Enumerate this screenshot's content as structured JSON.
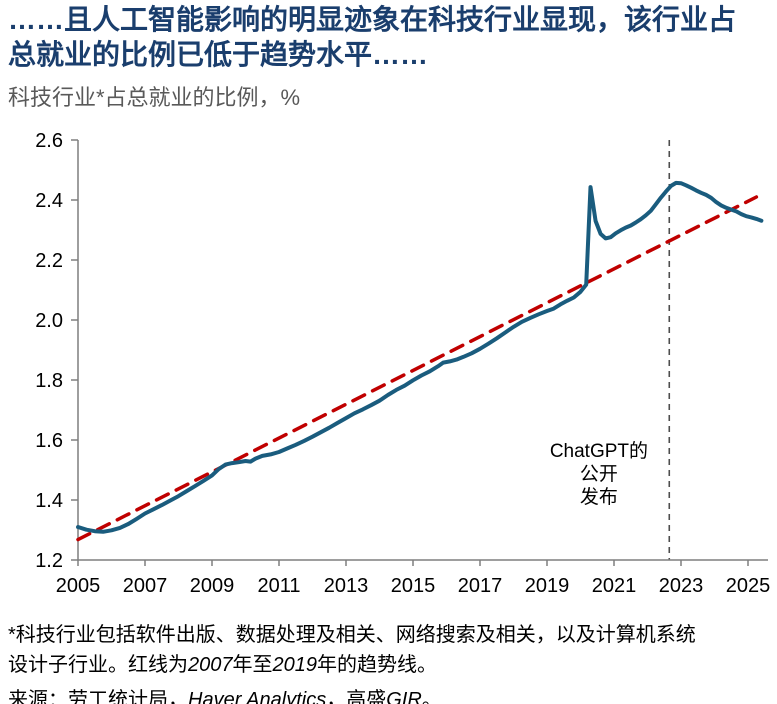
{
  "header": {
    "title_line1": "……且人工智能影响的明显迹象在科技行业显现，该行业占",
    "title_line2": "总就业的比例已低于趋势水平……",
    "subtitle": "科技行业*占总就业的比例，%"
  },
  "chart_data": {
    "type": "line",
    "title": "科技行业*占总就业的比例，%",
    "xlabel": "",
    "ylabel": "",
    "grid": false,
    "legend": "none",
    "xlim": [
      2005,
      2025.65
    ],
    "ylim": [
      1.2,
      2.6
    ],
    "x_ticks": [
      2005,
      2007,
      2009,
      2011,
      2013,
      2015,
      2017,
      2019,
      2021,
      2023,
      2025
    ],
    "y_ticks": [
      1.2,
      1.4,
      1.6,
      1.8,
      2.0,
      2.2,
      2.4,
      2.6
    ],
    "colors": {
      "series": "#1a5c7e",
      "trend": "#c00000",
      "vline": "#4d4d4d",
      "axis": "#7f7f7f",
      "tick_label": "#000000"
    },
    "series": [
      {
        "name": "科技行业占总就业的比例",
        "color": "#1a5c7e",
        "style": "solid",
        "points": [
          [
            2005.0,
            1.31
          ],
          [
            2005.25,
            1.301
          ],
          [
            2005.5,
            1.296
          ],
          [
            2005.75,
            1.294
          ],
          [
            2006.0,
            1.299
          ],
          [
            2006.25,
            1.307
          ],
          [
            2006.5,
            1.32
          ],
          [
            2006.75,
            1.337
          ],
          [
            2007.0,
            1.355
          ],
          [
            2007.25,
            1.369
          ],
          [
            2007.5,
            1.383
          ],
          [
            2007.75,
            1.398
          ],
          [
            2008.0,
            1.413
          ],
          [
            2008.25,
            1.43
          ],
          [
            2008.5,
            1.447
          ],
          [
            2008.75,
            1.464
          ],
          [
            2009.0,
            1.482
          ],
          [
            2009.2,
            1.503
          ],
          [
            2009.4,
            1.518
          ],
          [
            2009.6,
            1.523
          ],
          [
            2009.8,
            1.526
          ],
          [
            2010.0,
            1.53
          ],
          [
            2010.15,
            1.528
          ],
          [
            2010.3,
            1.538
          ],
          [
            2010.5,
            1.547
          ],
          [
            2010.75,
            1.552
          ],
          [
            2011.0,
            1.56
          ],
          [
            2011.25,
            1.572
          ],
          [
            2011.5,
            1.584
          ],
          [
            2011.75,
            1.597
          ],
          [
            2012.0,
            1.611
          ],
          [
            2012.25,
            1.626
          ],
          [
            2012.5,
            1.641
          ],
          [
            2012.75,
            1.657
          ],
          [
            2013.0,
            1.673
          ],
          [
            2013.25,
            1.689
          ],
          [
            2013.5,
            1.702
          ],
          [
            2013.75,
            1.716
          ],
          [
            2014.0,
            1.731
          ],
          [
            2014.25,
            1.75
          ],
          [
            2014.5,
            1.767
          ],
          [
            2014.75,
            1.781
          ],
          [
            2015.0,
            1.799
          ],
          [
            2015.25,
            1.815
          ],
          [
            2015.5,
            1.829
          ],
          [
            2015.75,
            1.846
          ],
          [
            2015.9,
            1.858
          ],
          [
            2016.1,
            1.862
          ],
          [
            2016.3,
            1.868
          ],
          [
            2016.5,
            1.877
          ],
          [
            2016.75,
            1.889
          ],
          [
            2017.0,
            1.904
          ],
          [
            2017.25,
            1.921
          ],
          [
            2017.5,
            1.939
          ],
          [
            2017.75,
            1.958
          ],
          [
            2018.0,
            1.977
          ],
          [
            2018.25,
            1.994
          ],
          [
            2018.5,
            2.007
          ],
          [
            2018.75,
            2.019
          ],
          [
            2019.0,
            2.03
          ],
          [
            2019.2,
            2.038
          ],
          [
            2019.4,
            2.052
          ],
          [
            2019.6,
            2.064
          ],
          [
            2019.8,
            2.075
          ],
          [
            2020.0,
            2.094
          ],
          [
            2020.17,
            2.118
          ],
          [
            2020.3,
            2.443
          ],
          [
            2020.45,
            2.33
          ],
          [
            2020.6,
            2.287
          ],
          [
            2020.75,
            2.272
          ],
          [
            2020.9,
            2.276
          ],
          [
            2021.05,
            2.289
          ],
          [
            2021.2,
            2.299
          ],
          [
            2021.35,
            2.308
          ],
          [
            2021.5,
            2.315
          ],
          [
            2021.65,
            2.325
          ],
          [
            2021.8,
            2.336
          ],
          [
            2021.95,
            2.349
          ],
          [
            2022.1,
            2.364
          ],
          [
            2022.25,
            2.386
          ],
          [
            2022.4,
            2.408
          ],
          [
            2022.55,
            2.428
          ],
          [
            2022.7,
            2.447
          ],
          [
            2022.85,
            2.457
          ],
          [
            2023.0,
            2.456
          ],
          [
            2023.15,
            2.449
          ],
          [
            2023.3,
            2.441
          ],
          [
            2023.45,
            2.432
          ],
          [
            2023.6,
            2.424
          ],
          [
            2023.75,
            2.417
          ],
          [
            2023.9,
            2.407
          ],
          [
            2024.05,
            2.393
          ],
          [
            2024.2,
            2.382
          ],
          [
            2024.35,
            2.374
          ],
          [
            2024.5,
            2.368
          ],
          [
            2024.65,
            2.362
          ],
          [
            2024.8,
            2.353
          ],
          [
            2024.95,
            2.346
          ],
          [
            2025.1,
            2.342
          ],
          [
            2025.25,
            2.337
          ],
          [
            2025.4,
            2.331
          ]
        ]
      },
      {
        "name": "趋势线（2007年至2019年）",
        "color": "#c00000",
        "style": "dashed",
        "points": [
          [
            2005.0,
            1.268
          ],
          [
            2025.25,
            2.41
          ]
        ]
      }
    ],
    "vline": {
      "x": 2022.65
    },
    "annotation": {
      "lines": [
        "ChatGPT的",
        "公开",
        "发布"
      ],
      "x": 2020.55,
      "y": 1.567
    }
  },
  "footnote": {
    "part1": "*科技行业包括软件出版、数据处理及相关、网络搜索及相关，以及计算机系统设计子行业。红线为",
    "year1": "2007",
    "part2": "年至",
    "year2": "2019",
    "part3": "年的趋势线。"
  },
  "source": {
    "part1": "来源：劳工统计局，",
    "haver": "Haver Analytics",
    "part2": "，高盛",
    "gir": "GIR",
    "part3": "。"
  }
}
